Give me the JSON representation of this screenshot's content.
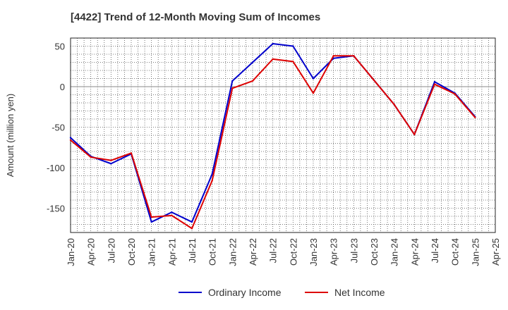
{
  "chart_data": {
    "type": "line",
    "title": "[4422]  Trend of 12-Month Moving Sum of Incomes",
    "xlabel": "",
    "ylabel": "Amount (million yen)",
    "ylim": [
      -180,
      60
    ],
    "yticks": [
      50,
      0,
      -50,
      -100,
      -150
    ],
    "grid": true,
    "legend": "bottom-center",
    "x_tick_labels": [
      "Jan-20",
      "Apr-20",
      "Jul-20",
      "Oct-20",
      "Jan-21",
      "Apr-21",
      "Jul-21",
      "Oct-21",
      "Jan-22",
      "Apr-22",
      "Jul-22",
      "Oct-22",
      "Jan-23",
      "Apr-23",
      "Jul-23",
      "Oct-23",
      "Jan-24",
      "Apr-24",
      "Jul-24",
      "Oct-24",
      "Jan-25",
      "Apr-25"
    ],
    "x": [
      "Jan-20",
      "Apr-20",
      "Jul-20",
      "Oct-20",
      "Jan-21",
      "Apr-21",
      "Jul-21",
      "Oct-21",
      "Jan-22",
      "Apr-22",
      "Jul-22",
      "Oct-22",
      "Jan-23",
      "Apr-23",
      "Jul-23",
      "Oct-23",
      "Jan-24",
      "Apr-24",
      "Jul-24",
      "Oct-24",
      "Jan-25"
    ],
    "series": [
      {
        "name": "Ordinary Income",
        "color": "#0000cc",
        "values": [
          -63,
          -86,
          -95,
          -83,
          -167,
          -155,
          -167,
          -108,
          7,
          30,
          53,
          50,
          10,
          35,
          38,
          8,
          -22,
          -59,
          6,
          -8,
          -37
        ]
      },
      {
        "name": "Net Income",
        "color": "#dd0000",
        "values": [
          -66,
          -87,
          -91,
          -82,
          -161,
          -159,
          -175,
          -116,
          -2,
          7,
          34,
          31,
          -8,
          38,
          38,
          8,
          -22,
          -59,
          3,
          -9,
          -38
        ]
      }
    ]
  }
}
